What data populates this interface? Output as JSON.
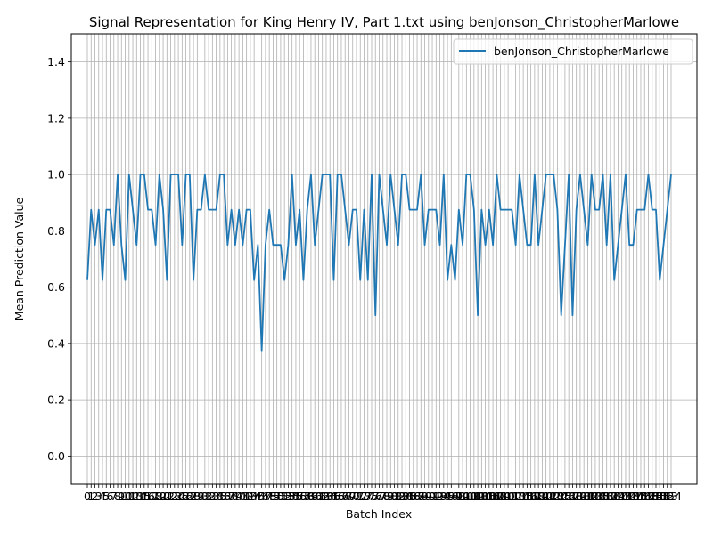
{
  "chart_data": {
    "type": "line",
    "title": "Signal Representation for King Henry IV, Part 1.txt using benJonson_ChristopherMarlowe",
    "xlabel": "Batch Index",
    "ylabel": "Mean Prediction Value",
    "ylim": [
      -0.1,
      1.5
    ],
    "yticks": [
      "0.0",
      "0.2",
      "0.4",
      "0.6",
      "0.8",
      "1.0",
      "1.2",
      "1.4"
    ],
    "grid": true,
    "legend_position": "upper-right",
    "series": [
      {
        "name": "benJonson_ChristopherMarlowe",
        "color": "#1f77b4",
        "values": [
          0.625,
          0.875,
          0.75,
          0.875,
          0.625,
          0.875,
          0.875,
          0.75,
          1.0,
          0.75,
          0.625,
          1.0,
          0.875,
          0.75,
          1.0,
          1.0,
          0.875,
          0.875,
          0.75,
          1.0,
          0.875,
          0.625,
          1.0,
          1.0,
          1.0,
          0.75,
          1.0,
          1.0,
          0.625,
          0.875,
          0.875,
          1.0,
          0.875,
          0.875,
          0.875,
          1.0,
          1.0,
          0.75,
          0.875,
          0.75,
          0.875,
          0.75,
          0.875,
          0.875,
          0.625,
          0.75,
          0.375,
          0.75,
          0.875,
          0.75,
          0.75,
          0.75,
          0.625,
          0.75,
          1.0,
          0.75,
          0.875,
          0.625,
          0.875,
          1.0,
          0.75,
          0.875,
          1.0,
          1.0,
          1.0,
          0.625,
          1.0,
          1.0,
          0.875,
          0.75,
          0.875,
          0.875,
          0.625,
          0.875,
          0.625,
          1.0,
          0.5,
          1.0,
          0.875,
          0.75,
          1.0,
          0.875,
          0.75,
          1.0,
          1.0,
          0.875,
          0.875,
          0.875,
          1.0,
          0.75,
          0.875,
          0.875,
          0.875,
          0.75,
          1.0,
          0.625,
          0.75,
          0.625,
          0.875,
          0.75,
          1.0,
          1.0,
          0.875,
          0.5,
          0.875,
          0.75,
          0.875,
          0.75,
          1.0,
          0.875,
          0.875,
          0.875,
          0.875,
          0.75,
          1.0,
          0.875,
          0.75,
          0.75,
          1.0,
          0.75,
          0.875,
          1.0,
          1.0,
          1.0,
          0.875,
          0.5,
          0.75,
          1.0,
          0.5,
          0.875,
          1.0,
          0.875,
          0.75,
          1.0,
          0.875,
          0.875,
          1.0,
          0.75,
          1.0,
          0.625,
          0.75,
          0.875,
          1.0,
          0.75,
          0.75,
          0.875,
          0.875,
          0.875,
          1.0,
          0.875,
          0.875,
          0.625,
          0.75,
          0.875,
          1.0
        ]
      }
    ]
  }
}
